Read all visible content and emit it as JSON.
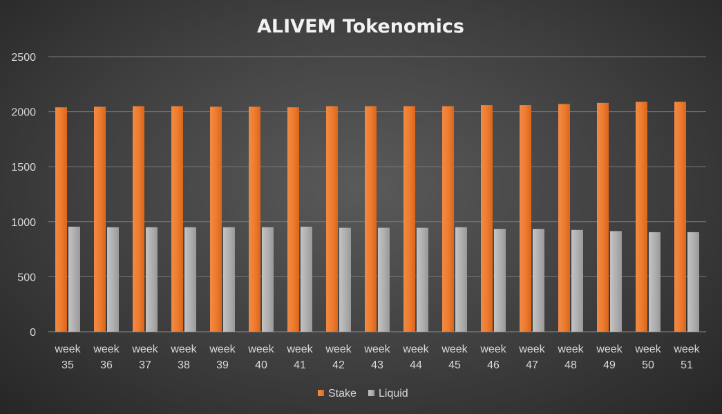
{
  "chart_data": {
    "type": "bar",
    "title": "ALIVEM Tokenomics",
    "categories": [
      [
        "week",
        "35"
      ],
      [
        "week",
        "36"
      ],
      [
        "week",
        "37"
      ],
      [
        "week",
        "38"
      ],
      [
        "week",
        "39"
      ],
      [
        "week",
        "40"
      ],
      [
        "week",
        "41"
      ],
      [
        "week",
        "42"
      ],
      [
        "week",
        "43"
      ],
      [
        "week",
        "44"
      ],
      [
        "week",
        "45"
      ],
      [
        "week",
        "46"
      ],
      [
        "week",
        "47"
      ],
      [
        "week",
        "48"
      ],
      [
        "week",
        "49"
      ],
      [
        "week",
        "50"
      ],
      [
        "week",
        "51"
      ]
    ],
    "series": [
      {
        "name": "Stake",
        "color": "#ed7d31",
        "values": [
          2040,
          2045,
          2050,
          2050,
          2045,
          2045,
          2040,
          2050,
          2050,
          2050,
          2050,
          2060,
          2060,
          2070,
          2080,
          2090,
          2090
        ]
      },
      {
        "name": "Liquid",
        "color": "#a5a5a5",
        "values": [
          955,
          950,
          950,
          950,
          950,
          950,
          955,
          945,
          945,
          945,
          950,
          935,
          935,
          925,
          915,
          905,
          905
        ]
      }
    ],
    "ylim": [
      0,
      2500
    ],
    "yticks": [
      "0",
      "500",
      "1000",
      "1500",
      "2000",
      "2500"
    ],
    "grid": true,
    "legend_position": "bottom"
  }
}
